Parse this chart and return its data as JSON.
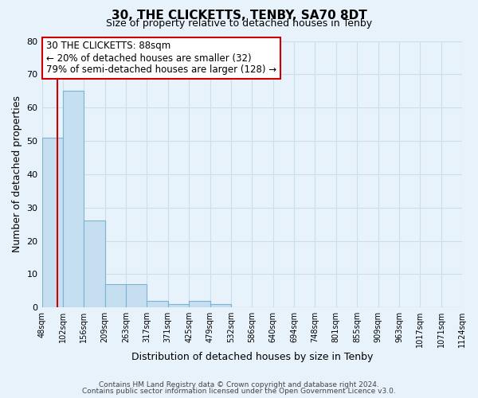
{
  "title": "30, THE CLICKETTS, TENBY, SA70 8DT",
  "subtitle": "Size of property relative to detached houses in Tenby",
  "xlabel": "Distribution of detached houses by size in Tenby",
  "ylabel": "Number of detached properties",
  "bin_labels": [
    "48sqm",
    "102sqm",
    "156sqm",
    "209sqm",
    "263sqm",
    "317sqm",
    "371sqm",
    "425sqm",
    "479sqm",
    "532sqm",
    "586sqm",
    "640sqm",
    "694sqm",
    "748sqm",
    "801sqm",
    "855sqm",
    "909sqm",
    "963sqm",
    "1017sqm",
    "1071sqm",
    "1124sqm"
  ],
  "bar_values": [
    51,
    65,
    26,
    7,
    7,
    2,
    1,
    2,
    1,
    0,
    0,
    0,
    0,
    0,
    0,
    0,
    0,
    0,
    0,
    0
  ],
  "bar_color": "#c6dff0",
  "bar_edgecolor": "#7ab3d4",
  "grid_color": "#c8dff0",
  "background_color": "#e8f2fa",
  "annotation_title": "30 THE CLICKETTS: 88sqm",
  "annotation_line1": "← 20% of detached houses are smaller (32)",
  "annotation_line2": "79% of semi-detached houses are larger (128) →",
  "annotation_box_color": "#ffffff",
  "annotation_box_edgecolor": "#cc0000",
  "property_line_color": "#cc0000",
  "ylim": [
    0,
    80
  ],
  "yticks": [
    0,
    10,
    20,
    30,
    40,
    50,
    60,
    70,
    80
  ],
  "footer_line1": "Contains HM Land Registry data © Crown copyright and database right 2024.",
  "footer_line2": "Contains public sector information licensed under the Open Government Licence v3.0."
}
